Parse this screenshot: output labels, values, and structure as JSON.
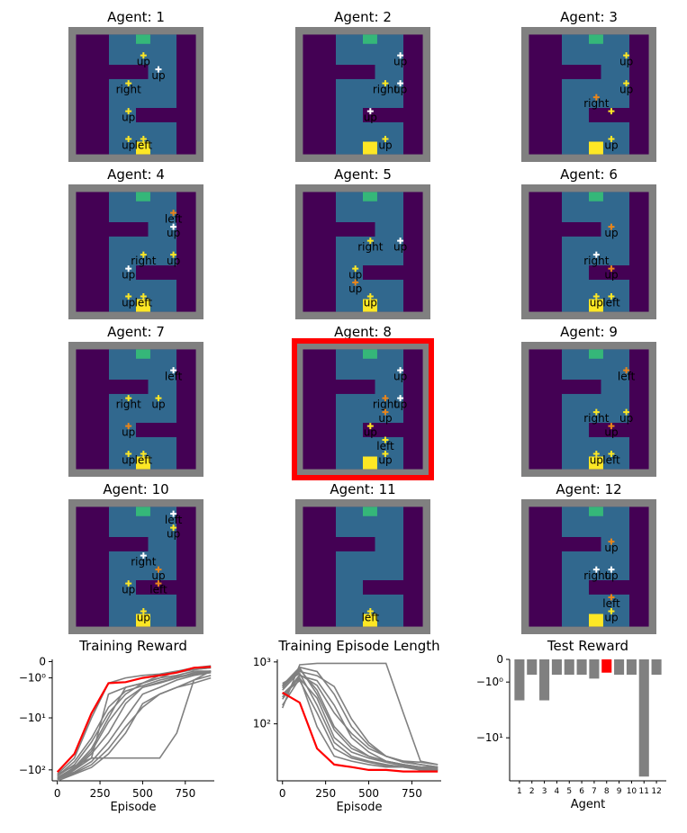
{
  "colors": {
    "wall": "#440154",
    "floor": "#31688e",
    "border": "#808080",
    "goal": "#35b779",
    "start": "#fde725",
    "agent_white": "#ffffff",
    "agent_yellow": "#fde725",
    "agent_orange": "#e8851b",
    "highlight": "#ff0000",
    "line": "#808080"
  },
  "gridworld_panels": [
    {
      "title": "Agent: 1",
      "highlighted": false,
      "actions": [
        {
          "label": "up",
          "color": "agent_yellow",
          "cx": 4,
          "cy": 1
        },
        {
          "label": "up",
          "color": "agent_white",
          "cx": 5,
          "cy": 2
        },
        {
          "label": "right",
          "color": "agent_yellow",
          "cx": 3,
          "cy": 3
        },
        {
          "label": "up",
          "color": "agent_yellow",
          "cx": 3,
          "cy": 5
        },
        {
          "label": "up",
          "color": "agent_yellow",
          "cx": 3,
          "cy": 7
        },
        {
          "label": "left",
          "color": "agent_yellow",
          "cx": 4,
          "cy": 7
        }
      ]
    },
    {
      "title": "Agent: 2",
      "highlighted": false,
      "actions": [
        {
          "label": "up",
          "color": "agent_white",
          "cx": 6,
          "cy": 1
        },
        {
          "label": "right",
          "color": "agent_yellow",
          "cx": 5,
          "cy": 3
        },
        {
          "label": "up",
          "color": "agent_white",
          "cx": 6,
          "cy": 3
        },
        {
          "label": "up",
          "color": "agent_white",
          "cx": 4,
          "cy": 5
        },
        {
          "label": "up",
          "color": "agent_yellow",
          "cx": 5,
          "cy": 7
        }
      ]
    },
    {
      "title": "Agent: 3",
      "highlighted": false,
      "actions": [
        {
          "label": "up",
          "color": "agent_yellow",
          "cx": 6,
          "cy": 1
        },
        {
          "label": "up",
          "color": "agent_yellow",
          "cx": 6,
          "cy": 3
        },
        {
          "label": "right",
          "color": "agent_orange",
          "cx": 4,
          "cy": 4
        },
        {
          "label": "",
          "color": "agent_yellow",
          "cx": 5,
          "cy": 5
        },
        {
          "label": "up",
          "color": "agent_yellow",
          "cx": 5,
          "cy": 7
        }
      ]
    },
    {
      "title": "Agent: 4",
      "highlighted": false,
      "actions": [
        {
          "label": "left",
          "color": "agent_orange",
          "cx": 6,
          "cy": 1
        },
        {
          "label": "up",
          "color": "agent_white",
          "cx": 6,
          "cy": 2
        },
        {
          "label": "right",
          "color": "agent_yellow",
          "cx": 4,
          "cy": 4
        },
        {
          "label": "up",
          "color": "agent_yellow",
          "cx": 6,
          "cy": 4
        },
        {
          "label": "up",
          "color": "agent_white",
          "cx": 3,
          "cy": 5
        },
        {
          "label": "up",
          "color": "agent_yellow",
          "cx": 3,
          "cy": 7
        },
        {
          "label": "left",
          "color": "agent_yellow",
          "cx": 4,
          "cy": 7
        }
      ]
    },
    {
      "title": "Agent: 5",
      "highlighted": false,
      "actions": [
        {
          "label": "up",
          "color": "agent_white",
          "cx": 6,
          "cy": 3
        },
        {
          "label": "right",
          "color": "agent_yellow",
          "cx": 4,
          "cy": 3
        },
        {
          "label": "up",
          "color": "agent_yellow",
          "cx": 3,
          "cy": 5
        },
        {
          "label": "up",
          "color": "agent_orange",
          "cx": 3,
          "cy": 6
        },
        {
          "label": "up",
          "color": "agent_yellow",
          "cx": 4,
          "cy": 7
        }
      ]
    },
    {
      "title": "Agent: 6",
      "highlighted": false,
      "actions": [
        {
          "label": "up",
          "color": "agent_orange",
          "cx": 5,
          "cy": 2
        },
        {
          "label": "right",
          "color": "agent_white",
          "cx": 4,
          "cy": 4
        },
        {
          "label": "up",
          "color": "agent_orange",
          "cx": 5,
          "cy": 5
        },
        {
          "label": "up",
          "color": "agent_yellow",
          "cx": 4,
          "cy": 7
        },
        {
          "label": "left",
          "color": "agent_yellow",
          "cx": 5,
          "cy": 7
        }
      ]
    },
    {
      "title": "Agent: 7",
      "highlighted": false,
      "actions": [
        {
          "label": "left",
          "color": "agent_white",
          "cx": 6,
          "cy": 1
        },
        {
          "label": "up",
          "color": "agent_yellow",
          "cx": 5,
          "cy": 3
        },
        {
          "label": "right",
          "color": "agent_yellow",
          "cx": 3,
          "cy": 3
        },
        {
          "label": "up",
          "color": "agent_orange",
          "cx": 3,
          "cy": 5
        },
        {
          "label": "up",
          "color": "agent_yellow",
          "cx": 3,
          "cy": 7
        },
        {
          "label": "left",
          "color": "agent_yellow",
          "cx": 4,
          "cy": 7
        }
      ]
    },
    {
      "title": "Agent: 8",
      "highlighted": true,
      "actions": [
        {
          "label": "up",
          "color": "agent_white",
          "cx": 6,
          "cy": 1
        },
        {
          "label": "right",
          "color": "agent_orange",
          "cx": 5,
          "cy": 3
        },
        {
          "label": "up",
          "color": "agent_white",
          "cx": 6,
          "cy": 3
        },
        {
          "label": "up",
          "color": "agent_orange",
          "cx": 5,
          "cy": 4
        },
        {
          "label": "up",
          "color": "agent_yellow",
          "cx": 4,
          "cy": 5
        },
        {
          "label": "left",
          "color": "agent_yellow",
          "cx": 5,
          "cy": 6
        },
        {
          "label": "up",
          "color": "agent_yellow",
          "cx": 5,
          "cy": 7
        }
      ]
    },
    {
      "title": "Agent: 9",
      "highlighted": false,
      "actions": [
        {
          "label": "left",
          "color": "agent_orange",
          "cx": 6,
          "cy": 1
        },
        {
          "label": "right",
          "color": "agent_yellow",
          "cx": 4,
          "cy": 4
        },
        {
          "label": "up",
          "color": "agent_yellow",
          "cx": 6,
          "cy": 4
        },
        {
          "label": "up",
          "color": "agent_orange",
          "cx": 5,
          "cy": 5
        },
        {
          "label": "up",
          "color": "agent_yellow",
          "cx": 4,
          "cy": 7
        },
        {
          "label": "left",
          "color": "agent_yellow",
          "cx": 5,
          "cy": 7
        }
      ]
    },
    {
      "title": "Agent: 10",
      "highlighted": false,
      "actions": [
        {
          "label": "left",
          "color": "agent_white",
          "cx": 6,
          "cy": 0
        },
        {
          "label": "up",
          "color": "agent_yellow",
          "cx": 6,
          "cy": 1
        },
        {
          "label": "right",
          "color": "agent_white",
          "cx": 4,
          "cy": 3
        },
        {
          "label": "up",
          "color": "agent_orange",
          "cx": 5,
          "cy": 4
        },
        {
          "label": "up",
          "color": "agent_yellow",
          "cx": 3,
          "cy": 5
        },
        {
          "label": "left",
          "color": "agent_orange",
          "cx": 5,
          "cy": 5
        },
        {
          "label": "up",
          "color": "agent_yellow",
          "cx": 4,
          "cy": 7
        }
      ]
    },
    {
      "title": "Agent: 11",
      "highlighted": false,
      "actions": [
        {
          "label": "left",
          "color": "agent_yellow",
          "cx": 4,
          "cy": 7
        }
      ]
    },
    {
      "title": "Agent: 12",
      "highlighted": false,
      "actions": [
        {
          "label": "up",
          "color": "agent_orange",
          "cx": 5,
          "cy": 2
        },
        {
          "label": "right",
          "color": "agent_white",
          "cx": 4,
          "cy": 4
        },
        {
          "label": "up",
          "color": "agent_white",
          "cx": 5,
          "cy": 4
        },
        {
          "label": "left",
          "color": "agent_orange",
          "cx": 5,
          "cy": 6
        },
        {
          "label": "up",
          "color": "agent_yellow",
          "cx": 5,
          "cy": 7
        }
      ]
    }
  ],
  "chart_data": [
    {
      "type": "line",
      "title": "Training Reward",
      "xlabel": "Episode",
      "ylabel": "",
      "xlim": [
        -30,
        920
      ],
      "xticks": [
        "0",
        "250",
        "500",
        "750"
      ],
      "yticks": [
        "0",
        "−10⁰",
        "−10¹",
        "−10²"
      ],
      "yscale": "symlog",
      "x": [
        0,
        100,
        200,
        300,
        400,
        500,
        600,
        700,
        800,
        900
      ],
      "highlight_series": 7,
      "series": [
        {
          "values": [
            -120,
            -60,
            -10,
            -1.5,
            -1.0,
            -0.8,
            -0.7,
            -0.5,
            -0.3,
            -0.2
          ]
        },
        {
          "values": [
            -130,
            -80,
            -30,
            -8,
            -3,
            -1.5,
            -1.0,
            -0.8,
            -0.5,
            -0.5
          ]
        },
        {
          "values": [
            -150,
            -100,
            -50,
            -20,
            -5,
            -2,
            -1.5,
            -1.0,
            -0.6,
            -0.5
          ]
        },
        {
          "values": [
            -140,
            -110,
            -70,
            -30,
            -10,
            -3,
            -2,
            -1.2,
            -0.8,
            -0.6
          ]
        },
        {
          "values": [
            -160,
            -120,
            -90,
            -50,
            -20,
            -5,
            -3,
            -2,
            -1.2,
            -0.8
          ]
        },
        {
          "values": [
            -150,
            -100,
            -60,
            -3,
            -2,
            -1.5,
            -0.8,
            -0.6,
            -0.4,
            -0.3
          ]
        },
        {
          "values": [
            -140,
            -90,
            -40,
            -10,
            -2,
            -1.5,
            -1.0,
            -0.5,
            -0.4,
            -0.3
          ]
        },
        {
          "values": [
            -110,
            -50,
            -8,
            -1.5,
            -1.4,
            -1.0,
            -0.8,
            -0.6,
            -0.3,
            -0.25
          ]
        },
        {
          "values": [
            -130,
            -70,
            -25,
            -6,
            -2.5,
            -1.8,
            -1.2,
            -0.9,
            -0.7,
            -0.5
          ]
        },
        {
          "values": [
            -150,
            -115,
            -80,
            -40,
            -15,
            -6,
            -3,
            -2,
            -1.5,
            -1.0
          ]
        },
        {
          "values": [
            -120,
            -85,
            -60,
            -60,
            -60,
            -60,
            -60,
            -20,
            -1.2,
            -0.5
          ]
        },
        {
          "values": [
            -140,
            -95,
            -45,
            -12,
            -4,
            -2,
            -1.4,
            -1.0,
            -0.7,
            -0.6
          ]
        }
      ]
    },
    {
      "type": "line",
      "title": "Training Episode Length",
      "xlabel": "Episode",
      "ylabel": "",
      "xlim": [
        -30,
        920
      ],
      "xticks": [
        "0",
        "250",
        "500",
        "750"
      ],
      "yticks": [
        "10³",
        "10²"
      ],
      "yscale": "log",
      "x": [
        0,
        100,
        200,
        300,
        400,
        500,
        600,
        700,
        800,
        900
      ],
      "highlight_series": 7,
      "series": [
        {
          "values": [
            300,
            550,
            90,
            30,
            25,
            22,
            20,
            20,
            19,
            18
          ]
        },
        {
          "values": [
            400,
            800,
            300,
            80,
            40,
            30,
            25,
            22,
            20,
            19
          ]
        },
        {
          "values": [
            250,
            600,
            500,
            200,
            60,
            35,
            25,
            22,
            20,
            20
          ]
        },
        {
          "values": [
            180,
            900,
            950,
            950,
            950,
            950,
            950,
            150,
            25,
            22
          ]
        },
        {
          "values": [
            350,
            700,
            600,
            400,
            120,
            50,
            30,
            25,
            22,
            20
          ]
        },
        {
          "values": [
            450,
            650,
            200,
            50,
            30,
            25,
            22,
            20,
            19,
            18
          ]
        },
        {
          "values": [
            300,
            500,
            150,
            40,
            28,
            24,
            21,
            20,
            18,
            18
          ]
        },
        {
          "values": [
            320,
            220,
            40,
            22,
            20,
            18,
            18,
            17,
            17,
            17
          ]
        },
        {
          "values": [
            380,
            750,
            350,
            90,
            45,
            30,
            25,
            22,
            20,
            19
          ]
        },
        {
          "values": [
            270,
            620,
            420,
            150,
            70,
            40,
            30,
            25,
            24,
            22
          ]
        },
        {
          "values": [
            420,
            820,
            700,
            300,
            90,
            45,
            30,
            24,
            22,
            20
          ]
        },
        {
          "values": [
            200,
            540,
            260,
            60,
            35,
            28,
            24,
            21,
            20,
            19
          ]
        }
      ]
    },
    {
      "type": "bar",
      "title": "Test Reward",
      "xlabel": "Agent",
      "ylabel": "",
      "yscale": "symlog",
      "yticks": [
        "0",
        "−10⁰",
        "−10¹"
      ],
      "categories": [
        "1",
        "2",
        "3",
        "4",
        "5",
        "6",
        "7",
        "8",
        "9",
        "10",
        "11",
        "12"
      ],
      "values": [
        -2.5,
        -0.6,
        -2.5,
        -0.6,
        -0.6,
        -0.6,
        -0.8,
        -0.5,
        -0.6,
        -0.6,
        -35,
        -0.6
      ],
      "highlight_index": 7
    }
  ]
}
